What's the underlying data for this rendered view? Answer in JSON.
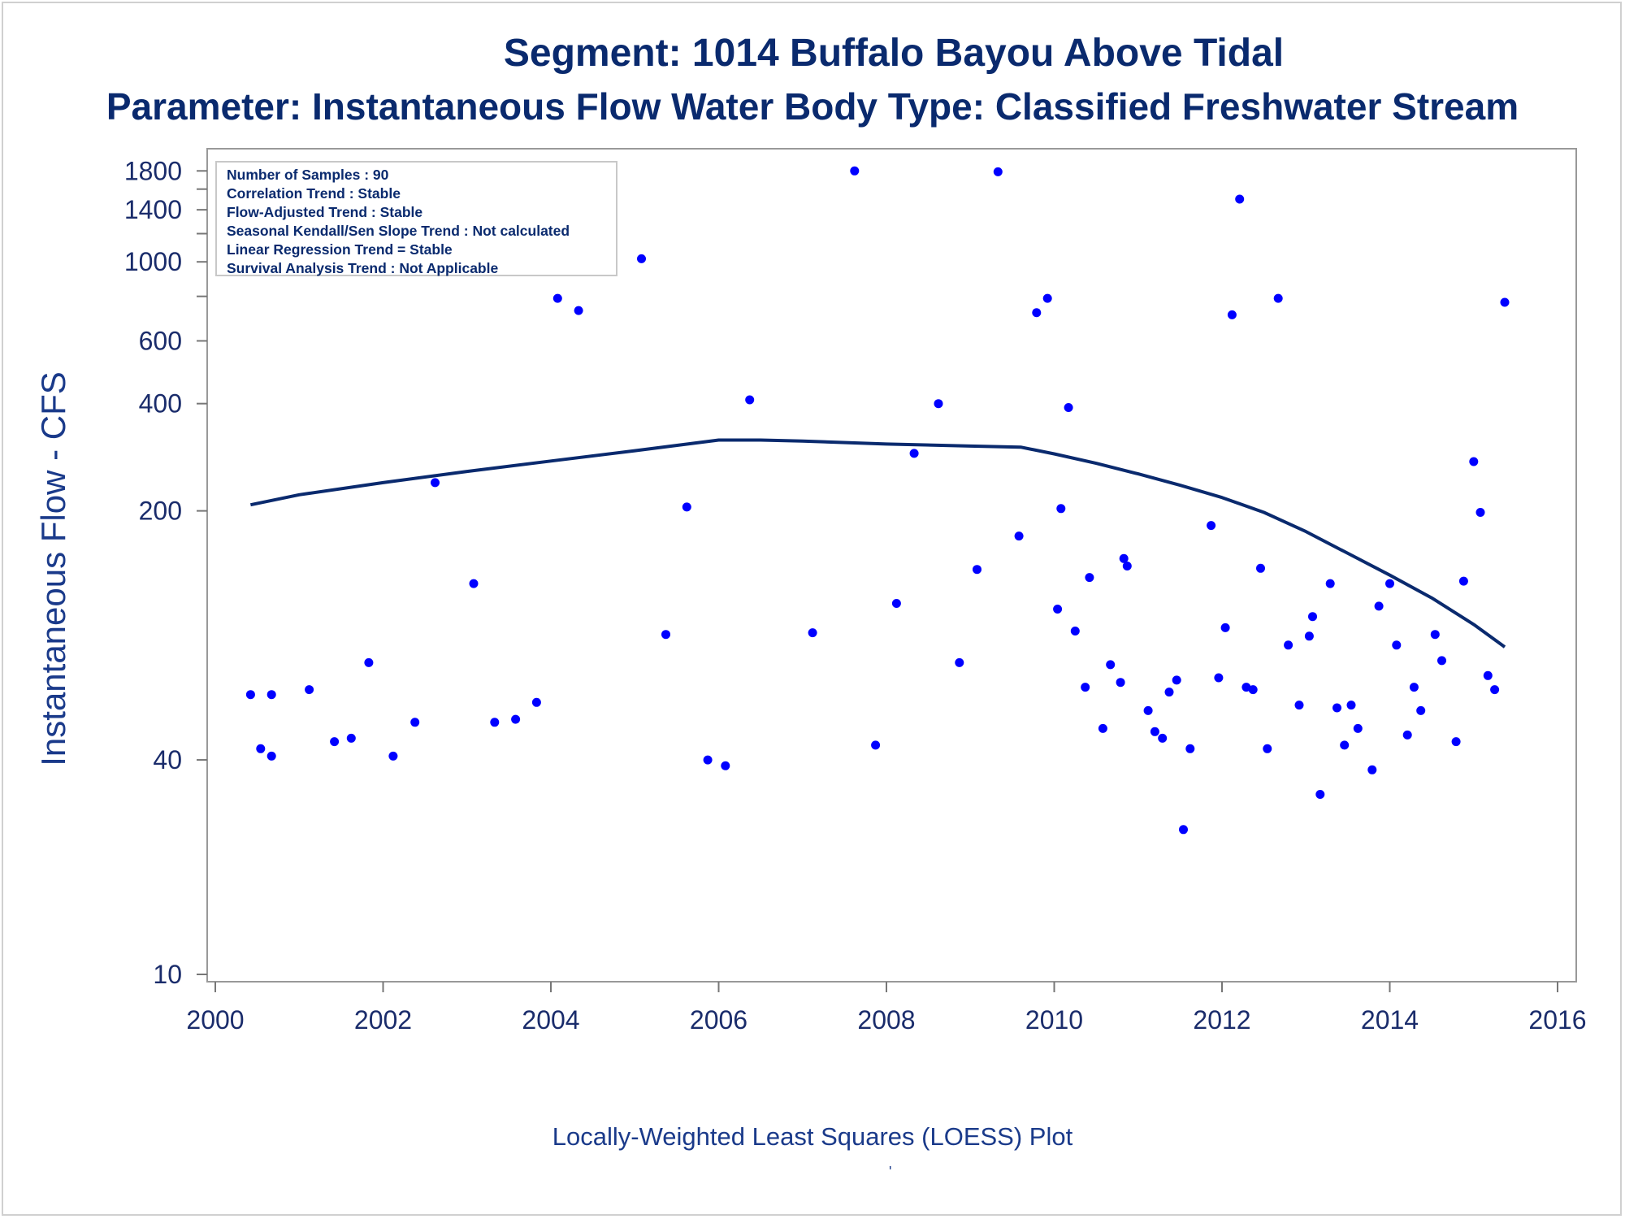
{
  "title": "Segment: 1014  Buffalo Bayou Above Tidal",
  "subtitle": "Parameter: Instantaneous Flow   Water Body Type: Classified Freshwater Stream",
  "stats_box": [
    "Number of Samples : 90",
    "Correlation Trend : Stable",
    "Flow-Adjusted Trend : Stable",
    "Seasonal Kendall/Sen Slope Trend : Not calculated",
    "Linear Regression Trend = Stable",
    "Survival Analysis Trend : Not Applicable"
  ],
  "footnote": "Locally-Weighted Least Squares (LOESS) Plot",
  "footnote_mark": "'",
  "colors": {
    "text": "#0a2a6e",
    "points": "#0000ff",
    "loess": "#0a2a6e",
    "axis": "#999999"
  },
  "chart_data": {
    "type": "scatter",
    "title": "Segment: 1014  Buffalo Bayou Above Tidal",
    "subtitle": "Parameter: Instantaneous Flow   Water Body Type: Classified Freshwater Stream",
    "xlabel": "",
    "ylabel": "Instantaneous Flow - CFS",
    "xlim": [
      2000,
      2016
    ],
    "ylim": [
      10,
      1900
    ],
    "yscale": "log",
    "x_ticks": [
      2000,
      2002,
      2004,
      2006,
      2008,
      2010,
      2012,
      2014,
      2016
    ],
    "y_ticks": [
      10,
      40,
      200,
      400,
      600,
      1000,
      1400,
      1800
    ],
    "y_minor_ticks": [
      800,
      1200,
      1600
    ],
    "grid": false,
    "legend": "none",
    "series": [
      {
        "type": "scatter",
        "points": [
          [
            2000.42,
            61
          ],
          [
            2000.54,
            43
          ],
          [
            2000.67,
            41
          ],
          [
            2000.67,
            61
          ],
          [
            2001.12,
            63
          ],
          [
            2001.42,
            45
          ],
          [
            2001.62,
            46
          ],
          [
            2001.83,
            75
          ],
          [
            2002.12,
            41
          ],
          [
            2002.38,
            51
          ],
          [
            2002.62,
            240
          ],
          [
            2002.88,
            1480
          ],
          [
            2003.08,
            125
          ],
          [
            2003.33,
            51
          ],
          [
            2003.58,
            52
          ],
          [
            2003.83,
            58
          ],
          [
            2004.08,
            790
          ],
          [
            2004.33,
            730
          ],
          [
            2005.08,
            1020
          ],
          [
            2005.37,
            90
          ],
          [
            2005.62,
            205
          ],
          [
            2005.87,
            40
          ],
          [
            2006.08,
            38.5
          ],
          [
            2006.37,
            410
          ],
          [
            2007.12,
            91
          ],
          [
            2007.62,
            1800
          ],
          [
            2007.87,
            44
          ],
          [
            2008.12,
            110
          ],
          [
            2008.33,
            290
          ],
          [
            2008.62,
            400
          ],
          [
            2008.87,
            75
          ],
          [
            2009.08,
            137
          ],
          [
            2009.33,
            1790
          ],
          [
            2009.58,
            170
          ],
          [
            2009.79,
            720
          ],
          [
            2009.92,
            790
          ],
          [
            2010.04,
            106
          ],
          [
            2010.08,
            203
          ],
          [
            2010.17,
            390
          ],
          [
            2010.25,
            92
          ],
          [
            2010.37,
            64
          ],
          [
            2010.42,
            130
          ],
          [
            2010.58,
            49
          ],
          [
            2010.67,
            74
          ],
          [
            2010.79,
            66
          ],
          [
            2010.83,
            147
          ],
          [
            2010.87,
            140
          ],
          [
            2011.12,
            55
          ],
          [
            2011.2,
            48
          ],
          [
            2011.29,
            46
          ],
          [
            2011.37,
            62
          ],
          [
            2011.46,
            67
          ],
          [
            2011.54,
            25.5
          ],
          [
            2011.62,
            43
          ],
          [
            2011.87,
            182
          ],
          [
            2011.96,
            68
          ],
          [
            2012.04,
            94
          ],
          [
            2012.12,
            710
          ],
          [
            2012.21,
            1500
          ],
          [
            2012.29,
            64
          ],
          [
            2012.37,
            63
          ],
          [
            2012.46,
            138
          ],
          [
            2012.54,
            43
          ],
          [
            2012.67,
            790
          ],
          [
            2012.79,
            84
          ],
          [
            2012.92,
            57
          ],
          [
            2013.04,
            89
          ],
          [
            2013.08,
            101
          ],
          [
            2013.17,
            32
          ],
          [
            2013.29,
            125
          ],
          [
            2013.37,
            56
          ],
          [
            2013.46,
            44
          ],
          [
            2013.54,
            57
          ],
          [
            2013.62,
            49
          ],
          [
            2013.79,
            37.5
          ],
          [
            2013.87,
            108
          ],
          [
            2014.0,
            125
          ],
          [
            2014.08,
            84
          ],
          [
            2014.21,
            47
          ],
          [
            2014.29,
            64
          ],
          [
            2014.37,
            55
          ],
          [
            2014.54,
            90
          ],
          [
            2014.62,
            76
          ],
          [
            2014.79,
            45
          ],
          [
            2014.88,
            127
          ],
          [
            2015.0,
            275
          ],
          [
            2015.08,
            198
          ],
          [
            2015.17,
            69
          ],
          [
            2015.25,
            63
          ],
          [
            2015.37,
            770
          ]
        ]
      },
      {
        "type": "line",
        "points": [
          [
            2000.42,
            208
          ],
          [
            2001,
            222
          ],
          [
            2002,
            240
          ],
          [
            2003,
            258
          ],
          [
            2004,
            276
          ],
          [
            2005,
            295
          ],
          [
            2006,
            316
          ],
          [
            2006.5,
            316
          ],
          [
            2007,
            314
          ],
          [
            2008,
            308
          ],
          [
            2009,
            304
          ],
          [
            2009.6,
            302
          ],
          [
            2010,
            289
          ],
          [
            2010.5,
            272
          ],
          [
            2011,
            254
          ],
          [
            2011.5,
            236
          ],
          [
            2012,
            218
          ],
          [
            2012.5,
            198
          ],
          [
            2013,
            175
          ],
          [
            2013.5,
            152
          ],
          [
            2014,
            132
          ],
          [
            2014.5,
            114
          ],
          [
            2015,
            96
          ],
          [
            2015.37,
            83
          ]
        ]
      }
    ]
  }
}
